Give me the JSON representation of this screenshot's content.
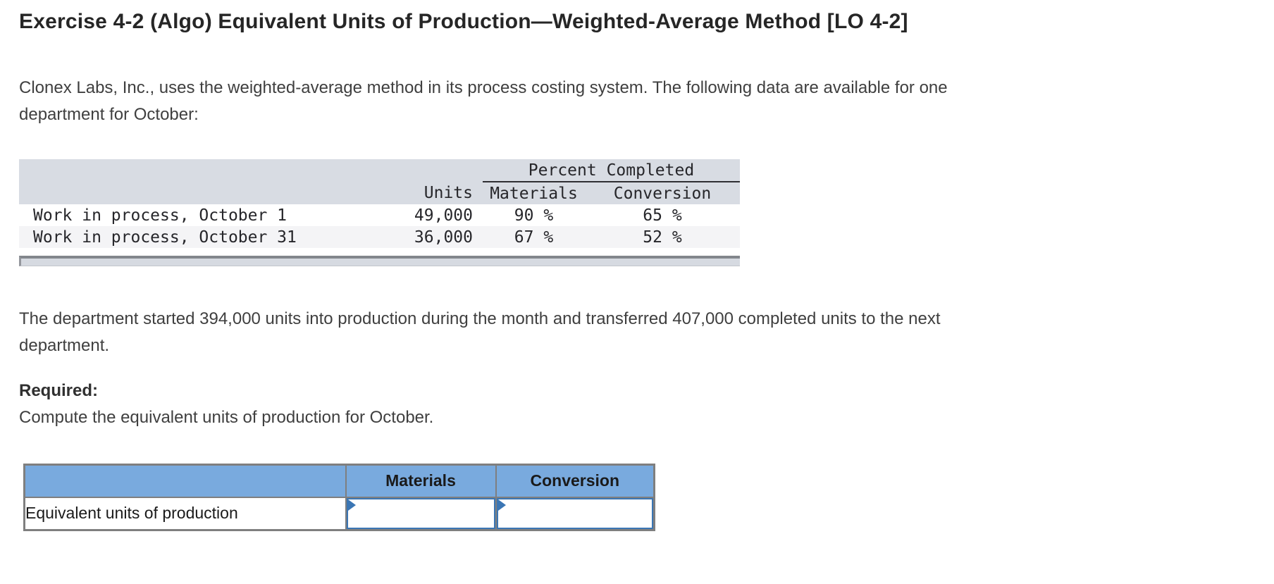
{
  "title": "Exercise 4-2 (Algo) Equivalent Units of Production—Weighted-Average Method [LO 4-2]",
  "intro": {
    "line1": "Clonex Labs, Inc., uses the weighted-average method in its process costing system. The following data are available for one",
    "line2": "department for October:"
  },
  "data_table": {
    "group_header": "Percent Completed",
    "columns": {
      "units": "Units",
      "materials": "Materials",
      "conversion": "Conversion"
    },
    "rows": [
      {
        "label": "Work in process, October 1",
        "units": "49,000",
        "materials": "90 %",
        "conversion": "65 %"
      },
      {
        "label": "Work in process, October 31",
        "units": "36,000",
        "materials": "67 %",
        "conversion": "52 %"
      }
    ]
  },
  "middle_text": {
    "line1": "The department started 394,000 units into production during the month and transferred 407,000 completed units to the next",
    "line2": "department."
  },
  "required": {
    "label": "Required:",
    "text": "Compute the equivalent units of production for October."
  },
  "answer_table": {
    "columns": {
      "materials": "Materials",
      "conversion": "Conversion"
    },
    "row_label": "Equivalent units of production",
    "materials_value": "",
    "conversion_value": ""
  },
  "colors": {
    "answer_header_bg": "#79aade",
    "answer_table_border": "#7f7f7f",
    "input_border_blue": "#3b76b4",
    "data_header_bg": "#d8dce3",
    "data_row_alt_bg": "#f4f4f6",
    "scrollbar_track": "#d6dae1"
  }
}
